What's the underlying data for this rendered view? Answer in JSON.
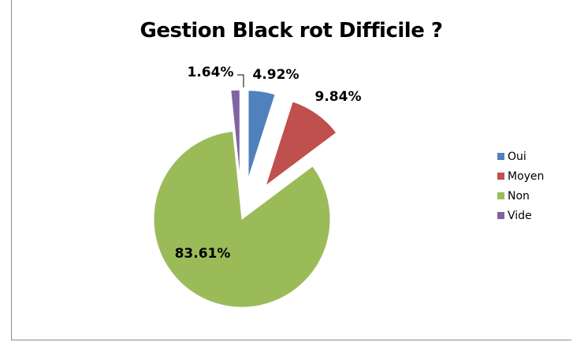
{
  "chart_data": {
    "type": "pie",
    "title": "Gestion Black rot Difficile ?",
    "categories": [
      "Oui",
      "Moyen",
      "Non",
      "Vide"
    ],
    "values": [
      4.92,
      9.84,
      83.61,
      1.64
    ],
    "labels": [
      "4.92%",
      "9.84%",
      "83.61%",
      "1.64%"
    ],
    "colors": [
      "#4f81bd",
      "#c0504d",
      "#9bbb59",
      "#8064a2"
    ],
    "exploded": true,
    "legend": "right"
  }
}
